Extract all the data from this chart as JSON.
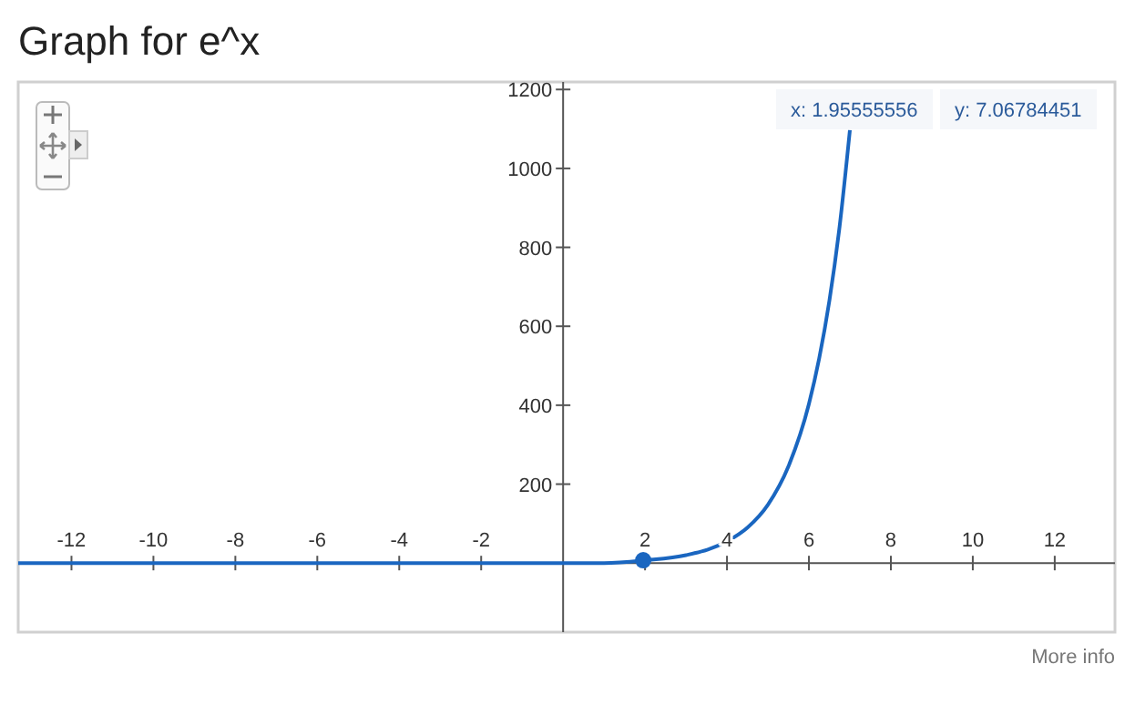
{
  "chart_data": {
    "type": "line",
    "title": "Graph for e^x",
    "xlim": [
      -13.3,
      13.47
    ],
    "ylim": [
      -175,
      1219
    ],
    "xticks": [
      -12,
      -10,
      -8,
      -6,
      -4,
      -2,
      2,
      4,
      6,
      8,
      10,
      12
    ],
    "yticks": [
      200,
      400,
      600,
      800,
      1000,
      1200
    ],
    "grid": false,
    "marker": "none",
    "line_style": "solid",
    "series": [
      {
        "color": "#1a66c0",
        "x": [
          -13.3,
          -12,
          -10,
          -8,
          -6,
          -4,
          -2,
          0,
          1,
          2,
          3,
          4,
          4.5,
          5,
          5.5,
          6,
          6.25,
          6.5,
          6.75,
          7
        ],
        "values": [
          0,
          0,
          0,
          0,
          0,
          0,
          0,
          0,
          0,
          7,
          20,
          55,
          90,
          148,
          245,
          403,
          518,
          665,
          854,
          1097
        ]
      },
      {
        "type": "scatter",
        "marker": "circle",
        "color": "#1a66c0",
        "x": [
          1.95555556
        ],
        "values": [
          7.06784451
        ]
      }
    ],
    "annotations": [
      "x: 1.95555556",
      "y: 7.06784451",
      "More info"
    ]
  }
}
